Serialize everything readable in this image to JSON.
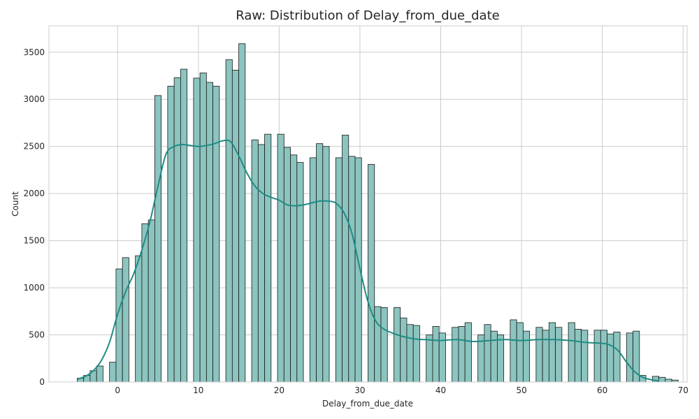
{
  "chart_data": {
    "type": "histogram",
    "title": "Raw: Distribution of Delay_from_due_date",
    "xlabel": "Delay_from_due_date",
    "ylabel": "Count",
    "xlim": [
      -8.5,
      70.5
    ],
    "ylim": [
      0,
      3780
    ],
    "x_ticks": [
      0,
      10,
      20,
      30,
      40,
      50,
      60,
      70
    ],
    "y_ticks": [
      0,
      500,
      1000,
      1500,
      2000,
      2500,
      3000,
      3500
    ],
    "grid": true,
    "colors": {
      "bar_fill": "#8cc4bf",
      "bar_edge": "#1a1a1a",
      "kde_line": "#1e8c84",
      "grid": "#cccccc"
    },
    "bin_width": 0.8,
    "bins": [
      {
        "x": -5.0,
        "count": 40
      },
      {
        "x": -4.2,
        "count": 70
      },
      {
        "x": -3.4,
        "count": 120
      },
      {
        "x": -2.6,
        "count": 170
      },
      {
        "x": -1.0,
        "count": 210
      },
      {
        "x": -0.2,
        "count": 1200
      },
      {
        "x": 0.6,
        "count": 1320
      },
      {
        "x": 2.2,
        "count": 1340
      },
      {
        "x": 3.0,
        "count": 1680
      },
      {
        "x": 3.8,
        "count": 1720
      },
      {
        "x": 4.6,
        "count": 3040
      },
      {
        "x": 6.2,
        "count": 3140
      },
      {
        "x": 7.0,
        "count": 3230
      },
      {
        "x": 7.8,
        "count": 3320
      },
      {
        "x": 9.4,
        "count": 3225
      },
      {
        "x": 10.2,
        "count": 3280
      },
      {
        "x": 11.0,
        "count": 3180
      },
      {
        "x": 11.8,
        "count": 3140
      },
      {
        "x": 13.4,
        "count": 3420
      },
      {
        "x": 14.2,
        "count": 3310
      },
      {
        "x": 15.0,
        "count": 3590
      },
      {
        "x": 16.6,
        "count": 2570
      },
      {
        "x": 17.4,
        "count": 2520
      },
      {
        "x": 18.2,
        "count": 2630
      },
      {
        "x": 19.8,
        "count": 2630
      },
      {
        "x": 20.6,
        "count": 2490
      },
      {
        "x": 21.4,
        "count": 2410
      },
      {
        "x": 22.2,
        "count": 2330
      },
      {
        "x": 23.8,
        "count": 2380
      },
      {
        "x": 24.6,
        "count": 2530
      },
      {
        "x": 25.4,
        "count": 2500
      },
      {
        "x": 27.0,
        "count": 2380
      },
      {
        "x": 27.8,
        "count": 2620
      },
      {
        "x": 28.6,
        "count": 2395
      },
      {
        "x": 29.4,
        "count": 2380
      },
      {
        "x": 31.0,
        "count": 2310
      },
      {
        "x": 31.8,
        "count": 800
      },
      {
        "x": 32.6,
        "count": 790
      },
      {
        "x": 34.2,
        "count": 790
      },
      {
        "x": 35.0,
        "count": 680
      },
      {
        "x": 35.8,
        "count": 610
      },
      {
        "x": 36.6,
        "count": 600
      },
      {
        "x": 38.2,
        "count": 500
      },
      {
        "x": 39.0,
        "count": 590
      },
      {
        "x": 39.8,
        "count": 520
      },
      {
        "x": 41.4,
        "count": 580
      },
      {
        "x": 42.2,
        "count": 590
      },
      {
        "x": 43.0,
        "count": 630
      },
      {
        "x": 44.6,
        "count": 500
      },
      {
        "x": 45.4,
        "count": 610
      },
      {
        "x": 46.2,
        "count": 540
      },
      {
        "x": 47.0,
        "count": 500
      },
      {
        "x": 48.6,
        "count": 660
      },
      {
        "x": 49.4,
        "count": 630
      },
      {
        "x": 50.2,
        "count": 540
      },
      {
        "x": 51.8,
        "count": 580
      },
      {
        "x": 52.6,
        "count": 550
      },
      {
        "x": 53.4,
        "count": 630
      },
      {
        "x": 54.2,
        "count": 580
      },
      {
        "x": 55.8,
        "count": 630
      },
      {
        "x": 56.6,
        "count": 560
      },
      {
        "x": 57.4,
        "count": 550
      },
      {
        "x": 59.0,
        "count": 550
      },
      {
        "x": 59.8,
        "count": 550
      },
      {
        "x": 60.6,
        "count": 510
      },
      {
        "x": 61.4,
        "count": 530
      },
      {
        "x": 63.0,
        "count": 520
      },
      {
        "x": 63.8,
        "count": 540
      },
      {
        "x": 64.6,
        "count": 70
      },
      {
        "x": 66.2,
        "count": 60
      },
      {
        "x": 67.0,
        "count": 50
      },
      {
        "x": 67.8,
        "count": 30
      },
      {
        "x": 68.6,
        "count": 20
      }
    ],
    "kde": {
      "x": [
        -5,
        -4,
        -3,
        -2,
        -1,
        0,
        1,
        2,
        3,
        4,
        5,
        6,
        7,
        8,
        9,
        10,
        11,
        12,
        13,
        14,
        15,
        16,
        17,
        18,
        19,
        20,
        21,
        22,
        23,
        24,
        25,
        26,
        27,
        28,
        29,
        30,
        31,
        32,
        33,
        34,
        35,
        36,
        37,
        38,
        39,
        40,
        42,
        44,
        46,
        48,
        50,
        52,
        54,
        56,
        58,
        60,
        61,
        62,
        63,
        64,
        65,
        66,
        67
      ],
      "y": [
        30,
        60,
        120,
        230,
        420,
        720,
        960,
        1150,
        1400,
        1700,
        2080,
        2420,
        2500,
        2520,
        2510,
        2500,
        2510,
        2530,
        2560,
        2550,
        2400,
        2220,
        2080,
        2000,
        1960,
        1930,
        1880,
        1870,
        1880,
        1900,
        1920,
        1920,
        1900,
        1800,
        1580,
        1200,
        850,
        640,
        560,
        520,
        490,
        470,
        455,
        450,
        445,
        440,
        450,
        430,
        440,
        450,
        440,
        450,
        450,
        440,
        420,
        410,
        390,
        330,
        210,
        110,
        50,
        25,
        10
      ]
    }
  }
}
